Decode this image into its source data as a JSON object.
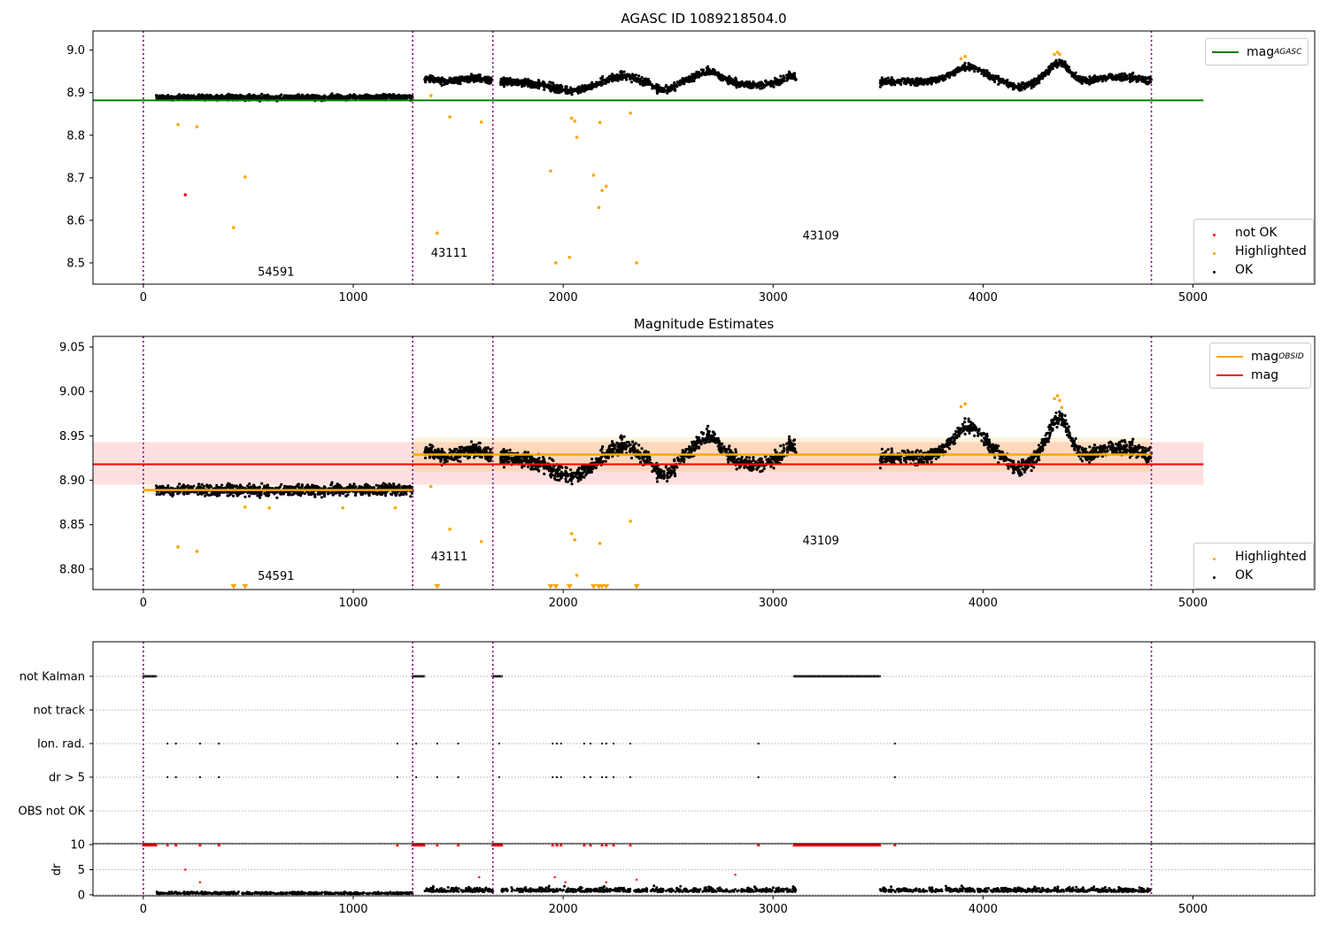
{
  "chart_data": [
    {
      "type": "scatter",
      "title": "AGASC ID 1089218504.0",
      "xlim": [
        -240,
        5580
      ],
      "ylim": [
        8.45,
        9.045
      ],
      "xticks": [
        0,
        1000,
        2000,
        3000,
        4000,
        5000
      ],
      "yticks": [
        8.5,
        8.6,
        8.7,
        8.8,
        8.9,
        9.0
      ],
      "ytick_labels": [
        "8.5",
        "8.6",
        "8.7",
        "8.8",
        "8.9",
        "9.0"
      ],
      "obsid_boundaries": [
        0,
        1283,
        1665,
        4802
      ],
      "obsid_labels": [
        {
          "x": 545,
          "y": 8.47,
          "text": "54591"
        },
        {
          "x": 1370,
          "y": 8.515,
          "text": "43111"
        },
        {
          "x": 3140,
          "y": 8.555,
          "text": "43109"
        }
      ],
      "mag_agasc_line": {
        "name": "mag_AGASC",
        "value": 8.882,
        "x": [
          -240,
          5050
        ],
        "color": "#008000"
      },
      "series": [
        {
          "name": "not OK",
          "color": "#ff0000",
          "points": [
            [
              200,
              8.66
            ]
          ]
        },
        {
          "name": "Highlighted",
          "color": "#ffa500",
          "points": [
            [
              165,
              8.825
            ],
            [
              255,
              8.82
            ],
            [
              430,
              8.583
            ],
            [
              485,
              8.702
            ],
            [
              1370,
              8.893
            ],
            [
              1400,
              8.57
            ],
            [
              1460,
              8.843
            ],
            [
              1610,
              8.831
            ],
            [
              1940,
              8.716
            ],
            [
              1965,
              8.5
            ],
            [
              2030,
              8.513
            ],
            [
              2040,
              8.84
            ],
            [
              2055,
              8.833
            ],
            [
              2065,
              8.795
            ],
            [
              2145,
              8.706
            ],
            [
              2170,
              8.63
            ],
            [
              2175,
              8.83
            ],
            [
              2185,
              8.67
            ],
            [
              2205,
              8.68
            ],
            [
              2320,
              8.852
            ],
            [
              2350,
              8.5
            ],
            [
              3895,
              8.98
            ],
            [
              3915,
              8.985
            ],
            [
              4340,
              8.99
            ],
            [
              4355,
              8.995
            ],
            [
              4365,
              8.99
            ]
          ]
        },
        {
          "name": "OK",
          "color": "#000000"
        }
      ],
      "legend": [
        {
          "label": "mag",
          "sub": "AGASC"
        }
      ],
      "marker_legend": [
        "not OK",
        "Highlighted",
        "OK"
      ]
    },
    {
      "type": "scatter",
      "title": "Magnitude Estimates",
      "xlim": [
        -240,
        5580
      ],
      "ylim": [
        8.777,
        9.062
      ],
      "xticks": [
        0,
        1000,
        2000,
        3000,
        4000,
        5000
      ],
      "yticks": [
        8.8,
        8.85,
        8.9,
        8.95,
        9.0,
        9.05
      ],
      "ytick_labels": [
        "8.80",
        "8.85",
        "8.90",
        "8.95",
        "9.00",
        "9.05"
      ],
      "obsid_boundaries": [
        0,
        1283,
        1665,
        4802
      ],
      "obsid_labels": [
        {
          "x": 545,
          "y": 8.788,
          "text": "54591"
        },
        {
          "x": 1370,
          "y": 8.81,
          "text": "43111"
        },
        {
          "x": 3140,
          "y": 8.828,
          "text": "43109"
        }
      ],
      "mag": {
        "value": 8.918,
        "band": [
          8.895,
          8.943
        ],
        "x": [
          -240,
          5050
        ],
        "color": "#ff0000"
      },
      "mag_obsid": [
        {
          "x": [
            0,
            1283
          ],
          "value": 8.889,
          "band": [
            8.885,
            8.894
          ]
        },
        {
          "x": [
            1283,
            4802
          ],
          "value": 8.929,
          "band": [
            8.91,
            8.948
          ]
        }
      ],
      "series": [
        {
          "name": "Highlighted",
          "color": "#ffa500",
          "points": [
            [
              165,
              8.825
            ],
            [
              255,
              8.82
            ],
            [
              485,
              8.87
            ],
            [
              600,
              8.869
            ],
            [
              950,
              8.869
            ],
            [
              1200,
              8.869
            ],
            [
              1370,
              8.893
            ],
            [
              1460,
              8.845
            ],
            [
              1610,
              8.831
            ],
            [
              2040,
              8.84
            ],
            [
              2055,
              8.833
            ],
            [
              2065,
              8.793
            ],
            [
              2175,
              8.829
            ],
            [
              2320,
              8.854
            ],
            [
              3895,
              8.983
            ],
            [
              3915,
              8.986
            ],
            [
              4340,
              8.992
            ],
            [
              4355,
              8.995
            ],
            [
              4365,
              8.99
            ],
            [
              4375,
              8.982
            ]
          ],
          "clipped_x": [
            430,
            485,
            1400,
            1940,
            1965,
            2030,
            2145,
            2170,
            2185,
            2205,
            2350
          ]
        },
        {
          "name": "OK",
          "color": "#000000"
        }
      ],
      "legend": [
        {
          "label": "mag",
          "sub": "OBSID"
        },
        {
          "label": "mag",
          "sub": ""
        }
      ],
      "marker_legend": [
        "Highlighted",
        "OK"
      ]
    },
    {
      "type": "scatter",
      "title": "",
      "xlim": [
        -240,
        5580
      ],
      "xticks": [
        0,
        1000,
        2000,
        3000,
        4000,
        5000
      ],
      "flag_rows": [
        "not Kalman",
        "not track",
        "Ion. rad.",
        "dr > 5",
        "OBS not OK"
      ],
      "obsid_boundaries": [
        0,
        1283,
        1665,
        4802
      ],
      "flags": {
        "not Kalman": {
          "ranges": [
            [
              0,
              60
            ],
            [
              1283,
              1340
            ],
            [
              1665,
              1710
            ],
            [
              3100,
              3510
            ]
          ]
        },
        "not track": {
          "ranges": []
        },
        "Ion. rad.": {
          "points": [
            115,
            155,
            270,
            360,
            1210,
            1300,
            1400,
            1500,
            1695,
            1950,
            1970,
            1990,
            2100,
            2130,
            2185,
            2205,
            2240,
            2320,
            2930,
            3580
          ]
        },
        "dr > 5": {
          "points": [
            115,
            155,
            270,
            360,
            1210,
            1300,
            1400,
            1500,
            1695,
            1950,
            1970,
            1990,
            2100,
            2130,
            2185,
            2205,
            2240,
            2320,
            2930,
            3580
          ]
        },
        "OBS not OK": {
          "points": []
        }
      },
      "dr": {
        "ylabel": "dr",
        "ylim": [
          -0.2,
          10.2
        ],
        "yticks": [
          0,
          5,
          10
        ],
        "ytick_labels": [
          "0",
          "5",
          "10"
        ],
        "clipped_color": "#ff0000",
        "outliers": [
          [
            200,
            5.0
          ],
          [
            270,
            2.5
          ],
          [
            1600,
            3.5
          ],
          [
            1960,
            3.5
          ],
          [
            2010,
            2.5
          ],
          [
            2205,
            2.5
          ],
          [
            2350,
            3.0
          ],
          [
            2820,
            4.0
          ]
        ]
      }
    }
  ]
}
